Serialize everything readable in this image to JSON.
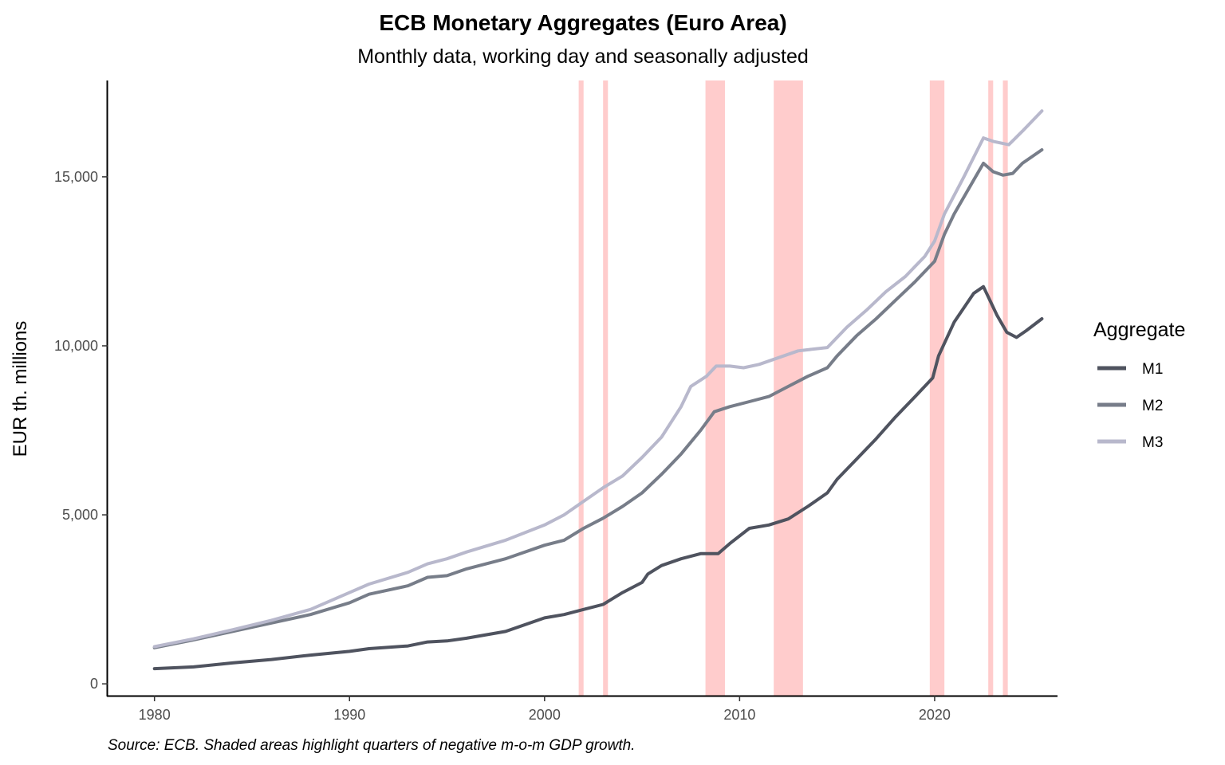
{
  "chart_data": {
    "type": "line",
    "title": "ECB Monetary Aggregates (Euro Area)",
    "subtitle": "Monthly data, working day and seasonally adjusted",
    "xlabel": "",
    "ylabel": "EUR th. millions",
    "caption": "Source: ECB. Shaded areas highlight quarters of negative m-o-m GDP  growth.",
    "xlim": [
      1977.6,
      2026.3
    ],
    "ylim": [
      -350,
      17850
    ],
    "x_ticks": [
      1980,
      1990,
      2000,
      2010,
      2020
    ],
    "x_tick_labels": [
      "1980",
      "1990",
      "2000",
      "2010",
      "2020"
    ],
    "y_ticks": [
      0,
      5000,
      10000,
      15000
    ],
    "y_tick_labels": [
      "0",
      "5,000",
      "10,000",
      "15,000"
    ],
    "grid": false,
    "legend": {
      "title": "Aggregate",
      "position": "right"
    },
    "shaded_periods": [
      [
        2001.75,
        2002.0
      ],
      [
        2003.0,
        2003.25
      ],
      [
        2008.25,
        2009.25
      ],
      [
        2011.75,
        2013.25
      ],
      [
        2019.75,
        2020.5
      ],
      [
        2022.75,
        2023.0
      ],
      [
        2023.5,
        2023.75
      ]
    ],
    "shade_color": "#ffcccc",
    "series": [
      {
        "name": "M1",
        "color": "#4f535f",
        "points": [
          [
            1980,
            450
          ],
          [
            1982,
            500
          ],
          [
            1984,
            620
          ],
          [
            1986,
            720
          ],
          [
            1988,
            850
          ],
          [
            1990,
            960
          ],
          [
            1991,
            1040
          ],
          [
            1993,
            1120
          ],
          [
            1994,
            1240
          ],
          [
            1995,
            1270
          ],
          [
            1996,
            1350
          ],
          [
            1998,
            1550
          ],
          [
            2000,
            1950
          ],
          [
            2001,
            2050
          ],
          [
            2002,
            2200
          ],
          [
            2003,
            2350
          ],
          [
            2004,
            2700
          ],
          [
            2005,
            3000
          ],
          [
            2005.3,
            3250
          ],
          [
            2006,
            3500
          ],
          [
            2007,
            3700
          ],
          [
            2008,
            3850
          ],
          [
            2008.9,
            3850
          ],
          [
            2009.5,
            4150
          ],
          [
            2010.5,
            4600
          ],
          [
            2011.5,
            4700
          ],
          [
            2012.5,
            4880
          ],
          [
            2013.5,
            5250
          ],
          [
            2014.5,
            5650
          ],
          [
            2015,
            6050
          ],
          [
            2016,
            6650
          ],
          [
            2017,
            7250
          ],
          [
            2018,
            7900
          ],
          [
            2019,
            8500
          ],
          [
            2019.9,
            9050
          ],
          [
            2020.2,
            9700
          ],
          [
            2021,
            10700
          ],
          [
            2022,
            11550
          ],
          [
            2022.5,
            11750
          ],
          [
            2023.2,
            10900
          ],
          [
            2023.7,
            10400
          ],
          [
            2024.2,
            10250
          ],
          [
            2024.7,
            10450
          ],
          [
            2025.5,
            10800
          ]
        ]
      },
      {
        "name": "M2",
        "color": "#777d89",
        "points": [
          [
            1980,
            1070
          ],
          [
            1982,
            1300
          ],
          [
            1984,
            1550
          ],
          [
            1986,
            1800
          ],
          [
            1988,
            2050
          ],
          [
            1990,
            2400
          ],
          [
            1991,
            2650
          ],
          [
            1993,
            2900
          ],
          [
            1994,
            3150
          ],
          [
            1995,
            3200
          ],
          [
            1996,
            3400
          ],
          [
            1998,
            3700
          ],
          [
            2000,
            4100
          ],
          [
            2001,
            4250
          ],
          [
            2002,
            4600
          ],
          [
            2003,
            4900
          ],
          [
            2004,
            5250
          ],
          [
            2005,
            5650
          ],
          [
            2006,
            6200
          ],
          [
            2007,
            6800
          ],
          [
            2008,
            7500
          ],
          [
            2008.7,
            8050
          ],
          [
            2009.5,
            8200
          ],
          [
            2010.5,
            8350
          ],
          [
            2011.5,
            8500
          ],
          [
            2012.5,
            8800
          ],
          [
            2013.5,
            9100
          ],
          [
            2014.5,
            9350
          ],
          [
            2015,
            9700
          ],
          [
            2016,
            10300
          ],
          [
            2017,
            10800
          ],
          [
            2018,
            11350
          ],
          [
            2019,
            11900
          ],
          [
            2020,
            12500
          ],
          [
            2020.5,
            13300
          ],
          [
            2021,
            13900
          ],
          [
            2022,
            14900
          ],
          [
            2022.5,
            15400
          ],
          [
            2023,
            15150
          ],
          [
            2023.5,
            15050
          ],
          [
            2024,
            15100
          ],
          [
            2024.5,
            15400
          ],
          [
            2025.5,
            15800
          ]
        ]
      },
      {
        "name": "M3",
        "color": "#b8b8cc",
        "points": [
          [
            1980,
            1100
          ],
          [
            1982,
            1330
          ],
          [
            1984,
            1600
          ],
          [
            1986,
            1880
          ],
          [
            1988,
            2200
          ],
          [
            1990,
            2700
          ],
          [
            1991,
            2950
          ],
          [
            1993,
            3300
          ],
          [
            1994,
            3550
          ],
          [
            1995,
            3700
          ],
          [
            1996,
            3900
          ],
          [
            1998,
            4250
          ],
          [
            2000,
            4700
          ],
          [
            2001,
            5000
          ],
          [
            2002,
            5400
          ],
          [
            2003,
            5800
          ],
          [
            2004,
            6150
          ],
          [
            2005,
            6700
          ],
          [
            2006,
            7300
          ],
          [
            2007,
            8200
          ],
          [
            2007.5,
            8800
          ],
          [
            2008.3,
            9100
          ],
          [
            2008.8,
            9400
          ],
          [
            2009.5,
            9400
          ],
          [
            2010.2,
            9350
          ],
          [
            2011,
            9450
          ],
          [
            2012,
            9650
          ],
          [
            2013,
            9850
          ],
          [
            2014.5,
            9950
          ],
          [
            2015.5,
            10550
          ],
          [
            2016.5,
            11050
          ],
          [
            2017.5,
            11600
          ],
          [
            2018.5,
            12050
          ],
          [
            2019.5,
            12650
          ],
          [
            2020,
            13100
          ],
          [
            2020.5,
            13900
          ],
          [
            2021.5,
            15000
          ],
          [
            2022.5,
            16150
          ],
          [
            2023,
            16050
          ],
          [
            2023.8,
            15950
          ],
          [
            2024.5,
            16350
          ],
          [
            2025.5,
            16950
          ]
        ]
      }
    ]
  }
}
